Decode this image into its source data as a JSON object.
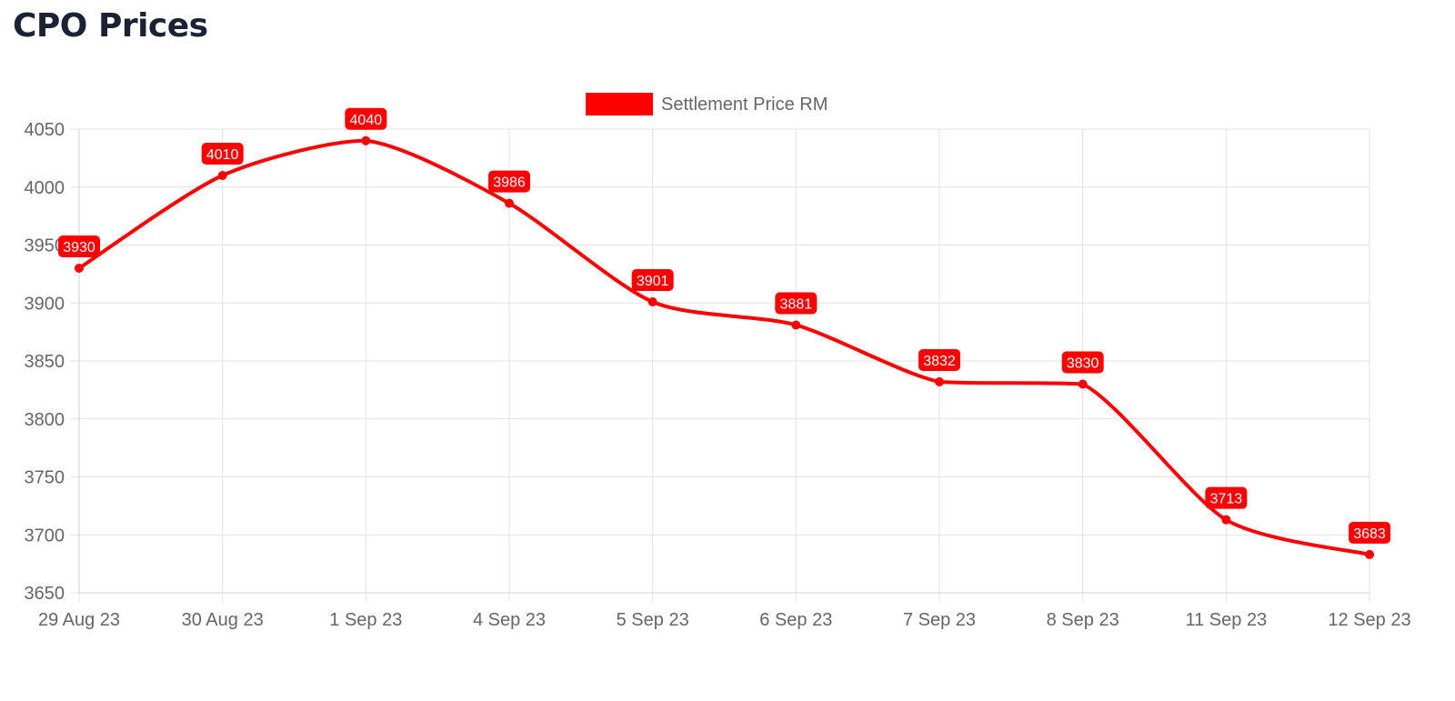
{
  "page": {
    "title": "CPO Prices"
  },
  "chart_data": {
    "type": "line",
    "title": "",
    "xlabel": "",
    "ylabel": "",
    "categories": [
      "29 Aug 23",
      "30 Aug 23",
      "1 Sep 23",
      "4 Sep 23",
      "5 Sep 23",
      "6 Sep 23",
      "7 Sep 23",
      "8 Sep 23",
      "11 Sep 23",
      "12 Sep 23"
    ],
    "series": [
      {
        "name": "Settlement Price RM",
        "color": "#ff0000",
        "values": [
          3930,
          4010,
          4040,
          3986,
          3901,
          3881,
          3832,
          3830,
          3713,
          3683
        ]
      }
    ],
    "ylim": [
      3650,
      4050
    ],
    "yticks": [
      3650,
      3700,
      3750,
      3800,
      3850,
      3900,
      3950,
      4000,
      4050
    ],
    "grid": true,
    "legend_position": "top-center",
    "data_labels": true
  }
}
